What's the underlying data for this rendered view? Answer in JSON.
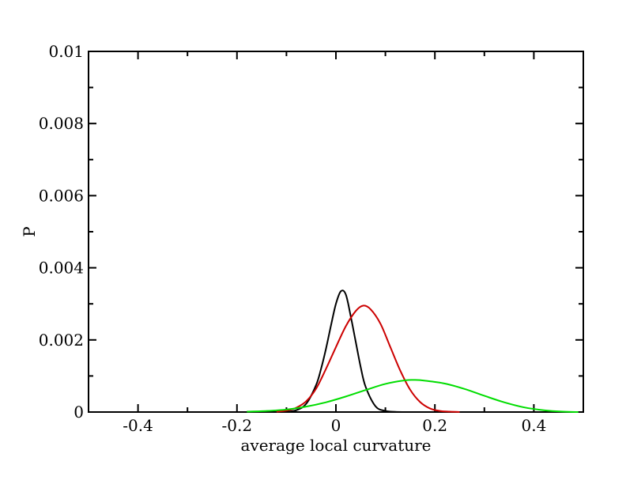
{
  "chart_data": {
    "type": "line",
    "title": "",
    "xlabel": "average local curvature",
    "ylabel": "P",
    "xlim": [
      -0.5,
      0.5
    ],
    "ylim": [
      0,
      0.01
    ],
    "x_ticks": [
      -0.4,
      -0.2,
      0,
      0.2,
      0.4
    ],
    "x_tick_labels": [
      "-0.4",
      "-0.2",
      "0",
      "0.2",
      "0.4"
    ],
    "y_ticks": [
      0,
      0.002,
      0.004,
      0.006,
      0.008,
      0.01
    ],
    "y_tick_labels": [
      "0",
      "0.002",
      "0.004",
      "0.006",
      "0.008",
      "0.01"
    ],
    "grid": false,
    "legend": "none",
    "series": [
      {
        "color": "#000000",
        "x": [
          -0.1,
          -0.08,
          -0.06,
          -0.04,
          -0.03,
          -0.02,
          -0.01,
          0.0,
          0.01,
          0.02,
          0.03,
          0.04,
          0.05,
          0.06,
          0.08,
          0.1,
          0.12,
          0.14
        ],
        "y": [
          1e-05,
          5e-05,
          0.00023,
          0.00075,
          0.0012,
          0.00176,
          0.0024,
          0.003,
          0.00335,
          0.00326,
          0.00265,
          0.00195,
          0.00125,
          0.0007,
          0.00016,
          3e-05,
          5e-06,
          0.0
        ]
      },
      {
        "color": "#cc0000",
        "x": [
          -0.12,
          -0.1,
          -0.08,
          -0.06,
          -0.04,
          -0.02,
          0.0,
          0.02,
          0.04,
          0.055,
          0.07,
          0.09,
          0.11,
          0.13,
          0.15,
          0.17,
          0.19,
          0.21,
          0.23,
          0.25
        ],
        "y": [
          1e-05,
          4e-05,
          0.00012,
          0.0003,
          0.00065,
          0.0012,
          0.0018,
          0.00238,
          0.0028,
          0.00295,
          0.00285,
          0.00245,
          0.0018,
          0.00115,
          0.00062,
          0.00028,
          0.0001,
          3e-05,
          1e-05,
          0.0
        ]
      },
      {
        "color": "#00dd00",
        "x": [
          -0.18,
          -0.14,
          -0.1,
          -0.06,
          -0.02,
          0.02,
          0.06,
          0.1,
          0.14,
          0.16,
          0.18,
          0.22,
          0.26,
          0.3,
          0.34,
          0.38,
          0.42,
          0.46,
          0.49
        ],
        "y": [
          1e-05,
          3e-05,
          7e-05,
          0.00015,
          0.00027,
          0.00043,
          0.00061,
          0.00078,
          0.00088,
          0.00089,
          0.00087,
          0.00079,
          0.00064,
          0.00045,
          0.00027,
          0.00013,
          5e-05,
          1e-05,
          0.0
        ]
      }
    ]
  }
}
